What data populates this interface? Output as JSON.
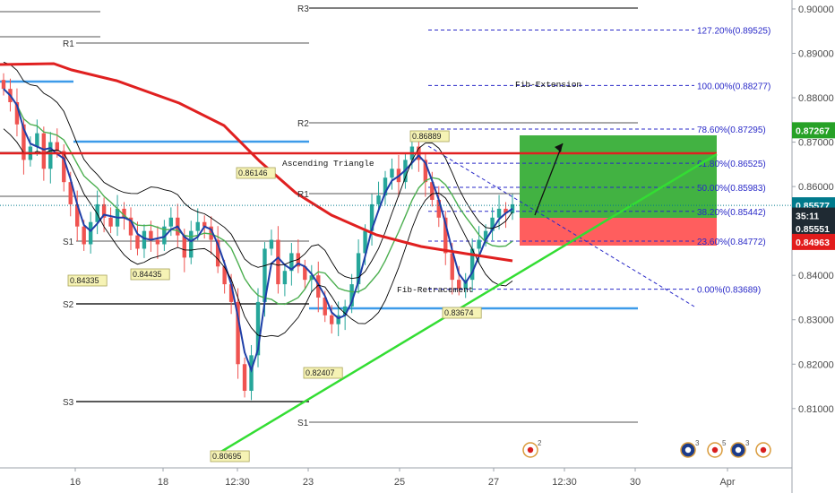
{
  "chart_data": {
    "type": "line",
    "y_range": [
      0.8035,
      0.9008
    ],
    "y_ticks": [
      "0.90000",
      "0.89000",
      "0.88000",
      "0.87000",
      "0.86000",
      "0.85000",
      "0.84000",
      "0.83000",
      "0.82000",
      "0.81000"
    ],
    "x_ticks": [
      "16",
      "18",
      "12:30",
      "23",
      "25",
      "27",
      "12:30",
      "30",
      "Apr"
    ],
    "price_tags": [
      {
        "label": "0.87267",
        "value": 0.87267,
        "color": "#26a126"
      },
      {
        "label": "0.85577",
        "value": 0.85577,
        "color": "#007a8c"
      },
      {
        "label": "35:11",
        "value": 0.85345,
        "color": "#1f2a33"
      },
      {
        "label": "0.85551",
        "value": 0.85051,
        "color": "#1f2a33"
      },
      {
        "label": "0.84963",
        "value": 0.84753,
        "color": "#e21c1c"
      }
    ],
    "fib_levels": [
      {
        "label": "127.20%(0.89525)",
        "value": 0.89525
      },
      {
        "label": "100.00%(0.88277)",
        "value": 0.88277
      },
      {
        "label": "78.60%(0.87295)",
        "value": 0.87295
      },
      {
        "label": "61.80%(0.86525)",
        "value": 0.86525
      },
      {
        "label": "50.00%(0.85983)",
        "value": 0.85983
      },
      {
        "label": "38.20%(0.85442)",
        "value": 0.85442
      },
      {
        "label": "23.60%(0.84772)",
        "value": 0.84772
      },
      {
        "label": "0.00%(0.83689)",
        "value": 0.83689
      }
    ],
    "pivot_labels_left": [
      "R1",
      "S1",
      "S2",
      "S3"
    ],
    "pivot_labels_right": [
      "R3",
      "R2",
      "R1",
      "S1"
    ],
    "swing_labels": [
      "0.84335",
      "0.84435",
      "0.86146",
      "0.82407",
      "0.80695",
      "0.86889",
      "0.83674"
    ],
    "annotations": [
      "Ascending Triangle",
      "Fib-Extension",
      "Fib-Retracement"
    ],
    "close_series": [
      0.882,
      0.879,
      0.874,
      0.866,
      0.869,
      0.872,
      0.864,
      0.87,
      0.868,
      0.861,
      0.856,
      0.851,
      0.847,
      0.852,
      0.856,
      0.853,
      0.851,
      0.855,
      0.853,
      0.849,
      0.846,
      0.85,
      0.848,
      0.847,
      0.851,
      0.853,
      0.849,
      0.844,
      0.85,
      0.852,
      0.851,
      0.848,
      0.842,
      0.838,
      0.834,
      0.82,
      0.814,
      0.822,
      0.834,
      0.846,
      0.848,
      0.838,
      0.841,
      0.845,
      0.842,
      0.839,
      0.84,
      0.835,
      0.831,
      0.829,
      0.831,
      0.833,
      0.838,
      0.845,
      0.85,
      0.856,
      0.858,
      0.862,
      0.864,
      0.861,
      0.866,
      0.869,
      0.866,
      0.861,
      0.857,
      0.853,
      0.845,
      0.839,
      0.837,
      0.839,
      0.846,
      0.848,
      0.85,
      0.853,
      0.855,
      0.854,
      0.856
    ]
  },
  "events": [
    {
      "icon": "canada-flag-icon",
      "count": "2"
    },
    {
      "icon": "australia-flag-icon",
      "count": "3"
    },
    {
      "icon": "canada-flag-icon",
      "count": "5"
    },
    {
      "icon": "australia-flag-icon",
      "count": "3"
    },
    {
      "icon": "canada-flag-icon",
      "count": ""
    }
  ],
  "colors": {
    "ma_red": "#e02020",
    "ma_green": "#4caf50",
    "ma_blue": "#1f3fa8",
    "bands": "#000000",
    "trend_green": "#33dd33",
    "support_blue": "#3d9be9",
    "fib_blue": "#2929c8",
    "bull": "#26a69a",
    "bear": "#ef5350",
    "profit_zone": "#2eaa2e",
    "loss_zone": "#ff4d4d"
  }
}
